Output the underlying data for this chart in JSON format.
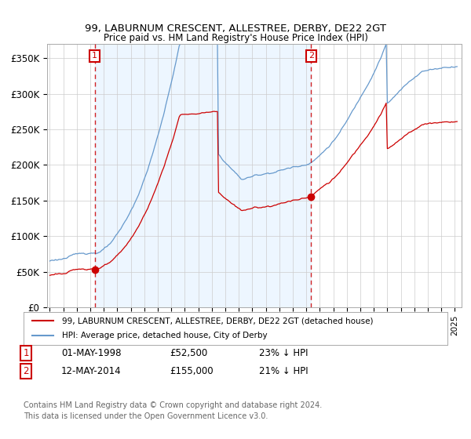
{
  "title": "99, LABURNUM CRESCENT, ALLESTREE, DERBY, DE22 2GT",
  "subtitle": "Price paid vs. HM Land Registry's House Price Index (HPI)",
  "ylim": [
    0,
    370000
  ],
  "xlim_start": 1994.8,
  "xlim_end": 2025.5,
  "legend_line1": "99, LABURNUM CRESCENT, ALLESTREE, DERBY, DE22 2GT (detached house)",
  "legend_line2": "HPI: Average price, detached house, City of Derby",
  "sale1_date": "01-MAY-1998",
  "sale1_price": "£52,500",
  "sale1_hpi": "23% ↓ HPI",
  "sale1_x": 1998.33,
  "sale1_y": 52500,
  "sale2_date": "12-MAY-2014",
  "sale2_price": "£155,000",
  "sale2_hpi": "21% ↓ HPI",
  "sale2_x": 2014.36,
  "sale2_y": 155000,
  "footer": "Contains HM Land Registry data © Crown copyright and database right 2024.\nThis data is licensed under the Open Government Licence v3.0.",
  "red_color": "#cc0000",
  "blue_color": "#6699cc",
  "bg_shade_color": "#ddeeff"
}
